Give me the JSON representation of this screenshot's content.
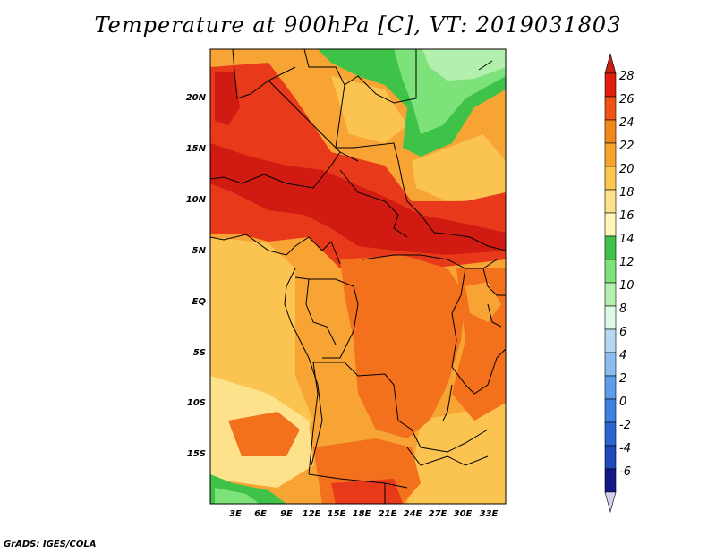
{
  "title": "Temperature at 900hPa [C], VT: 2019031803",
  "credit": "GrADS: IGES/COLA",
  "latitude_labels": [
    "20N",
    "15N",
    "10N",
    "5N",
    "EQ",
    "5S",
    "10S",
    "15S"
  ],
  "longitude_labels": [
    "3E",
    "6E",
    "9E",
    "12E",
    "15E",
    "18E",
    "21E",
    "24E",
    "27E",
    "30E",
    "33E"
  ],
  "colorbar": {
    "labels": [
      "28",
      "26",
      "24",
      "22",
      "20",
      "18",
      "16",
      "14",
      "12",
      "10",
      "8",
      "6",
      "4",
      "2",
      "0",
      "-2",
      "-4",
      "-6"
    ],
    "top_arrow_color": "#c81e14",
    "bottom_arrow_color": "#d6d0f0",
    "bands_top_to_bottom": [
      "#e11e10",
      "#f05414",
      "#f2871b",
      "#f7a52c",
      "#fbc74f",
      "#fde189",
      "#fff7b8",
      "#3ec248",
      "#7de27a",
      "#b4f0ad",
      "#def9e6",
      "#b6d8f2",
      "#8dbdf0",
      "#5e9dea",
      "#3c82e2",
      "#2a65d4",
      "#1f48b8",
      "#10188a"
    ]
  },
  "map_colors": {
    "c28": "#d11a12",
    "c26": "#e8391a",
    "c24": "#f3701c",
    "c22": "#f7a435",
    "c20": "#fbc450",
    "c18": "#fde18b",
    "c16": "#fff5b8",
    "c14": "#3ec248",
    "c12": "#7de27a",
    "c10": "#b4f0ad"
  }
}
